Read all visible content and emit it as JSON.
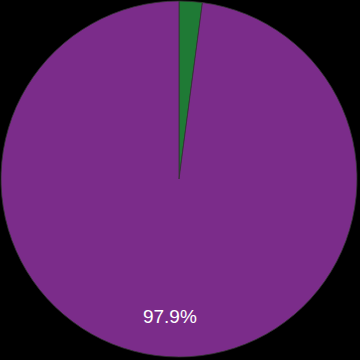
{
  "chart_data": {
    "type": "pie",
    "values": [
      2.1,
      97.9
    ],
    "colors": [
      "#1f7a35",
      "#7b2c8a"
    ],
    "data_labels": true,
    "value_labels": [
      null,
      "97.9%"
    ]
  }
}
